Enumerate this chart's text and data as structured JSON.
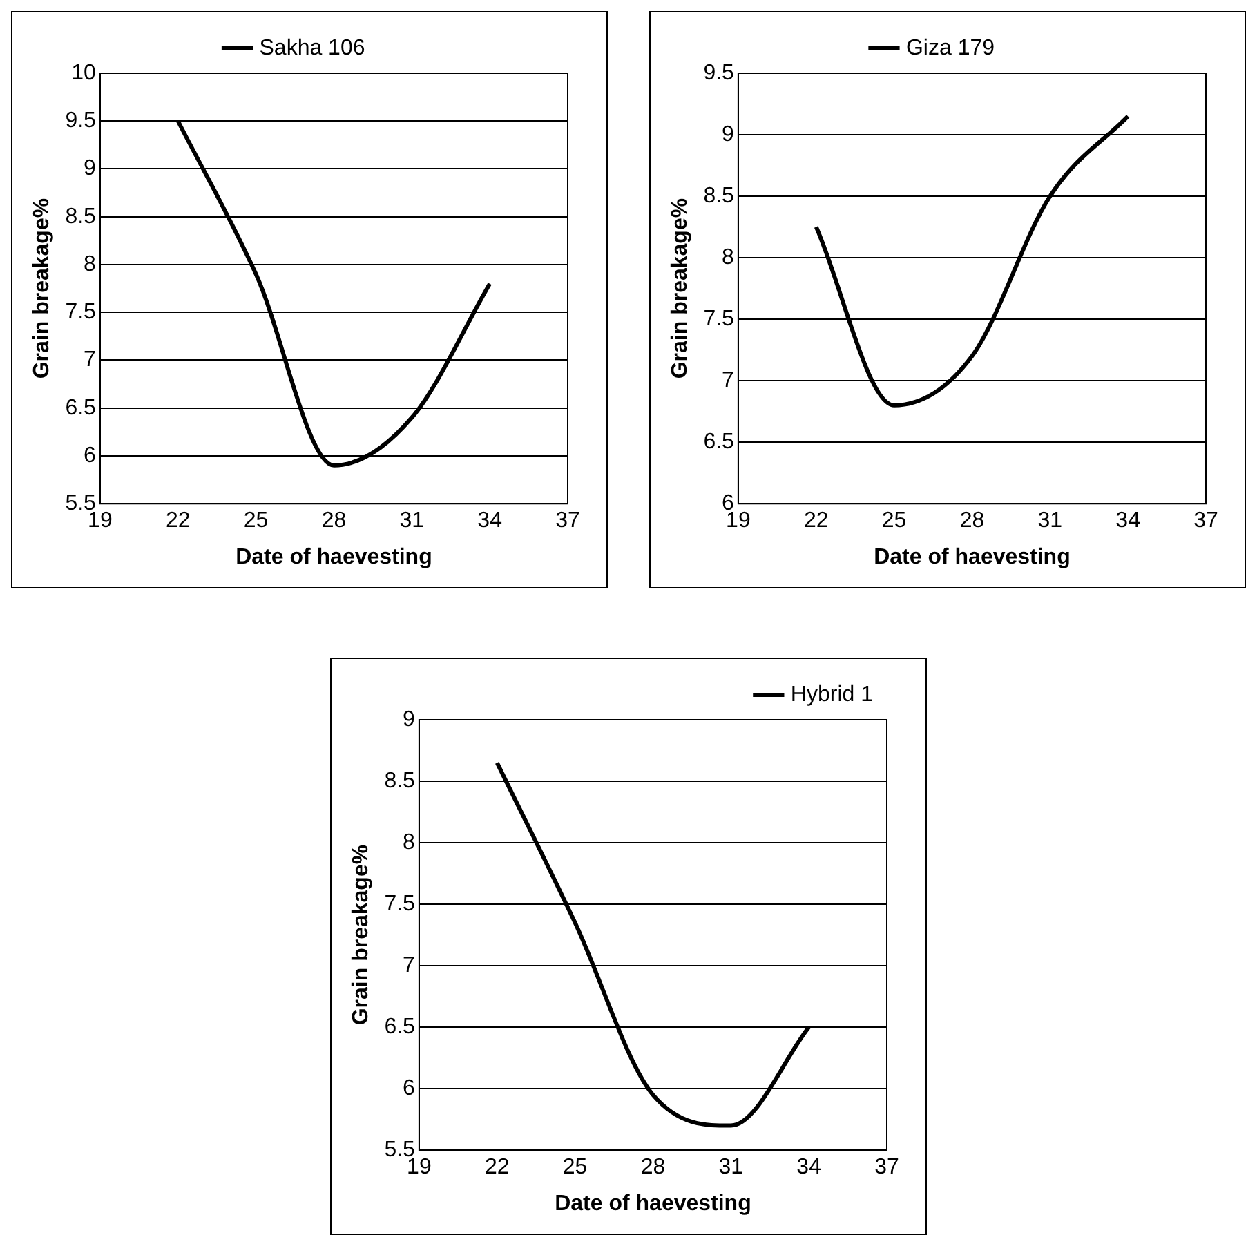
{
  "chart_data": [
    {
      "type": "line",
      "xlabel": "Date of haevesting",
      "ylabel": "Grain breakage%",
      "x": [
        22,
        25,
        28,
        31,
        34
      ],
      "xlim": [
        19,
        37
      ],
      "xticks": [
        19,
        22,
        25,
        28,
        31,
        34,
        37
      ],
      "ylim": [
        5.5,
        10
      ],
      "yticks": [
        {
          "value": 5.5,
          "label": "5.5"
        },
        6,
        {
          "value": 6.5,
          "label": "6.5"
        },
        7,
        {
          "value": 7.5,
          "label": "7.5"
        },
        8,
        {
          "value": 8.5,
          "label": "8.5"
        },
        9,
        {
          "value": 9.5,
          "label": "9.5"
        },
        10
      ],
      "grid": "y",
      "legend": "top",
      "marker": "none",
      "line_style": "solid",
      "series": [
        {
          "name": "Sakha 106",
          "color": "#000000",
          "values": [
            9.5,
            7.9,
            5.9,
            6.4,
            7.8
          ]
        }
      ]
    },
    {
      "type": "line",
      "xlabel": "Date of haevesting",
      "ylabel": "Grain breakage%",
      "x": [
        22,
        25,
        28,
        31,
        34
      ],
      "xlim": [
        19,
        37
      ],
      "xticks": [
        19,
        22,
        25,
        28,
        31,
        34,
        37
      ],
      "ylim": [
        6,
        9.5
      ],
      "yticks": [
        6,
        {
          "value": 6.5,
          "label": "6.5"
        },
        7,
        {
          "value": 7.5,
          "label": "7.5"
        },
        8,
        {
          "value": 8.5,
          "label": "8.5"
        },
        9,
        {
          "value": 9.5,
          "label": "9.5"
        }
      ],
      "grid": "y",
      "legend": "top",
      "marker": "none",
      "line_style": "solid",
      "series": [
        {
          "name": "Giza 179",
          "color": "#000000",
          "values": [
            8.25,
            6.8,
            7.2,
            8.5,
            9.15
          ]
        }
      ]
    },
    {
      "type": "line",
      "xlabel": "Date of haevesting",
      "ylabel": "Grain breakage%",
      "x": [
        22,
        25,
        28,
        31,
        34
      ],
      "xlim": [
        19,
        37
      ],
      "xticks": [
        19,
        22,
        25,
        28,
        31,
        34,
        37
      ],
      "ylim": [
        5.5,
        9
      ],
      "yticks": [
        {
          "value": 5.5,
          "label": "5.5"
        },
        6,
        {
          "value": 6.5,
          "label": "6.5"
        },
        7,
        {
          "value": 7.5,
          "label": "7.5"
        },
        8,
        {
          "value": 8.5,
          "label": "8.5"
        },
        9
      ],
      "grid": "y",
      "legend": "top right",
      "marker": "none",
      "line_style": "solid",
      "series": [
        {
          "name": "Hybrid 1",
          "color": "#000000",
          "values": [
            8.65,
            7.35,
            5.95,
            5.7,
            6.5
          ]
        }
      ]
    }
  ]
}
